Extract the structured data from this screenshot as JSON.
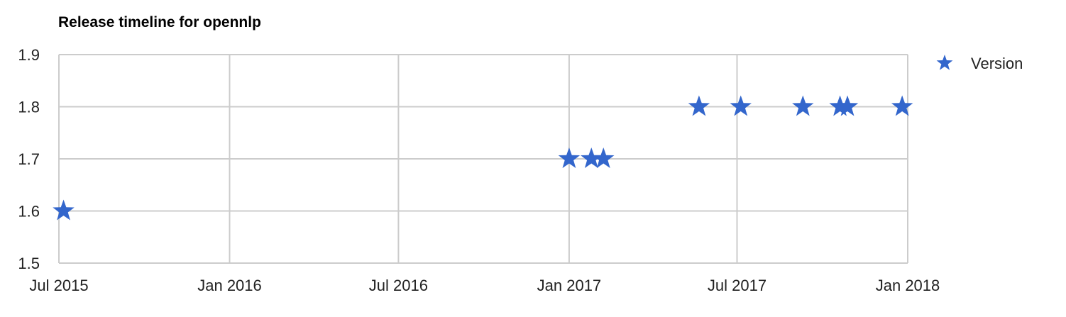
{
  "chart_data": {
    "type": "scatter",
    "title": "Release timeline for opennlp",
    "xlabel": "",
    "ylabel": "",
    "x_ticks": [
      "2015-07-01",
      "2016-01-01",
      "2016-07-01",
      "2017-01-01",
      "2017-07-01",
      "2018-01-01"
    ],
    "x_tick_labels": [
      "Jul 2015",
      "Jan 2016",
      "Jul 2016",
      "Jan 2017",
      "Jul 2017",
      "Jan 2018"
    ],
    "xlim": [
      "2015-07-01",
      "2018-01-01"
    ],
    "y_ticks": [
      1.5,
      1.6,
      1.7,
      1.8,
      1.9
    ],
    "y_tick_labels": [
      "1.5",
      "1.6",
      "1.7",
      "1.8",
      "1.9"
    ],
    "ylim": [
      1.5,
      1.9
    ],
    "grid": true,
    "legend_position": "right",
    "series": [
      {
        "name": "Version",
        "marker": "star",
        "color": "#3366cc",
        "points": [
          {
            "x": "2015-07-06",
            "y": 1.6
          },
          {
            "x": "2017-01-01",
            "y": 1.7
          },
          {
            "x": "2017-01-25",
            "y": 1.7
          },
          {
            "x": "2017-02-07",
            "y": 1.7
          },
          {
            "x": "2017-05-21",
            "y": 1.8
          },
          {
            "x": "2017-07-05",
            "y": 1.8
          },
          {
            "x": "2017-09-10",
            "y": 1.8
          },
          {
            "x": "2017-10-20",
            "y": 1.8
          },
          {
            "x": "2017-10-28",
            "y": 1.8
          },
          {
            "x": "2017-12-26",
            "y": 1.8
          }
        ]
      }
    ]
  }
}
